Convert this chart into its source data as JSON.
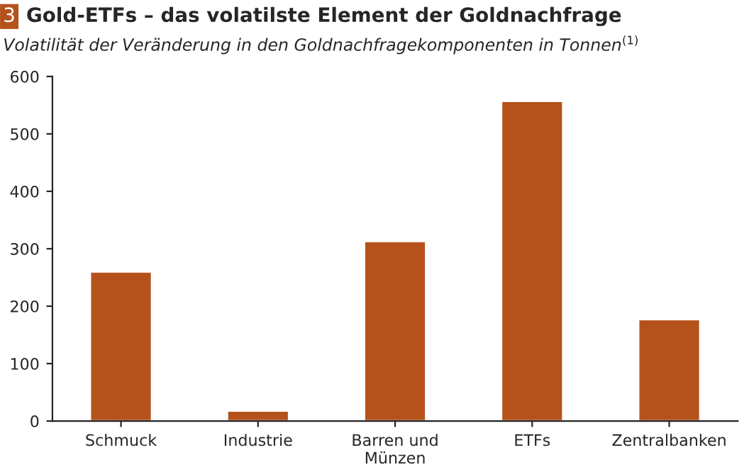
{
  "chart_data": {
    "type": "bar",
    "title": "Gold-ETFs – das volatilste Element der Goldnachfrage",
    "subtitle": "Volatilität der Veränderung in den Goldnachfragekomponenten in Tonnen$^{(1)}$",
    "annotations": [
      "3"
    ],
    "categories": [
      "Schmuck",
      "Industrie",
      "Barren und\nMünzen",
      "ETFs",
      "Zentralbanken"
    ],
    "values": [
      260,
      18,
      313,
      557,
      177
    ],
    "color": "#b5521b",
    "ylim": [
      0,
      600
    ],
    "yticks": [
      0,
      100,
      200,
      300,
      400,
      500,
      600
    ],
    "grid": false
  }
}
